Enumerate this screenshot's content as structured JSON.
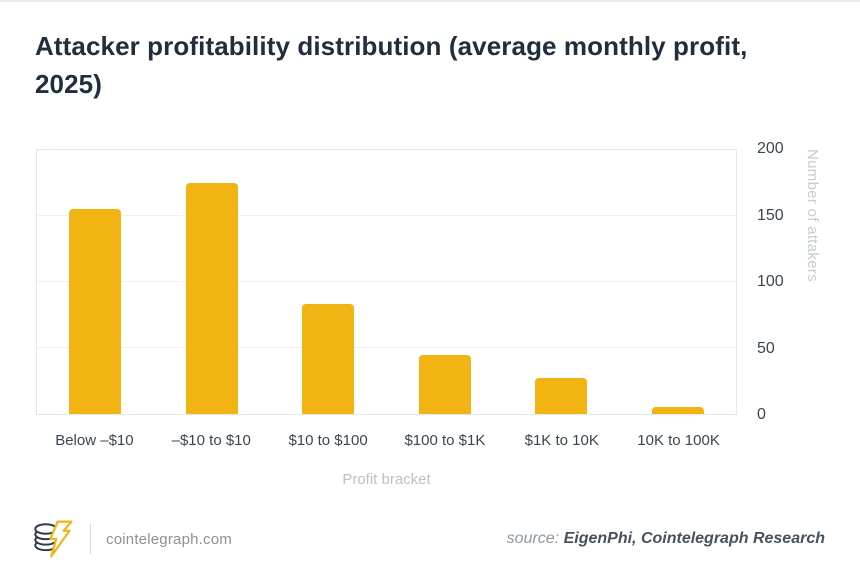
{
  "title": "Attacker profitability distribution (average monthly profit, 2025)",
  "chart_data": {
    "type": "bar",
    "title": "Attacker profitability distribution (average monthly profit, 2025)",
    "categories": [
      "Below –$10",
      "–$10 to $10",
      "$10 to $100",
      "$100 to $1K",
      "$1K to 10K",
      "10K to 100K"
    ],
    "values": [
      155,
      175,
      83,
      45,
      27,
      5
    ],
    "xlabel": "Profit bracket",
    "ylabel": "Number of attakers",
    "ylim": [
      0,
      200
    ],
    "yticks": [
      0,
      50,
      100,
      150,
      200
    ],
    "grid": true,
    "legend_position": "none",
    "bar_color": "#F2B412"
  },
  "colors": {
    "accent_yellow": "#F2B412",
    "title_text": "#212e3d",
    "tick_text": "#3a4653",
    "muted_text": "#b9c2ca",
    "gridline": "#eff1f3"
  },
  "footer": {
    "site": "cointelegraph.com",
    "source_label": "source:",
    "source_value": "EigenPhi, Cointelegraph Research"
  }
}
